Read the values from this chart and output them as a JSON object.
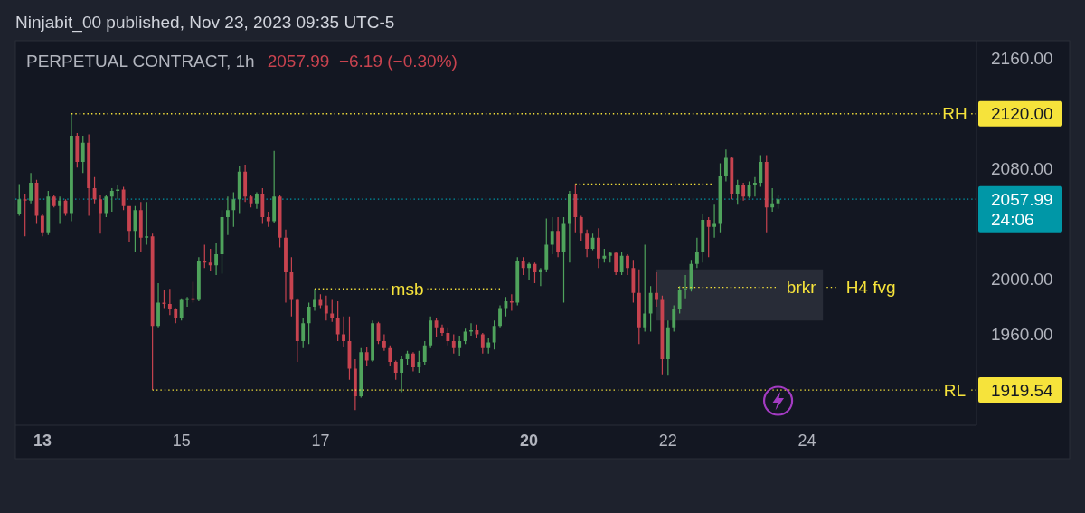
{
  "chart_data": {
    "type": "candlestick",
    "title": "PERPETUAL CONTRACT, 1h",
    "subtitle": "2057.99  −6.19 (−0.30%)",
    "annotations": [
      "Ninjabit_00 published, Nov 23, 2023 09:35 UTC-5",
      {
        "text": "RH",
        "x": "2023-11-26T03:00",
        "y": 2120
      },
      {
        "text": "RL",
        "x": "2023-11-26T03:00",
        "y": 1919.54
      },
      {
        "text": "msb",
        "x": "2023-11-18T06:00",
        "y": 1993
      },
      {
        "text": "brkr",
        "x": "2023-11-23T22:00",
        "y": 1994
      }
    ],
    "x": [
      "2023-11-12T16:00",
      "2023-11-12T18:00",
      "2023-11-12T20:00",
      "2023-11-12T22:00",
      "2023-11-13T00:00",
      "2023-11-13T02:00",
      "2023-11-13T04:00",
      "2023-11-13T06:00",
      "2023-11-13T08:00",
      "2023-11-13T10:00",
      "2023-11-13T12:00",
      "2023-11-13T14:00",
      "2023-11-13T16:00",
      "2023-11-13T18:00",
      "2023-11-13T20:00",
      "2023-11-13T22:00",
      "2023-11-14T00:00",
      "2023-11-14T02:00",
      "2023-11-14T04:00",
      "2023-11-14T06:00",
      "2023-11-14T08:00",
      "2023-11-14T10:00",
      "2023-11-14T12:00",
      "2023-11-14T14:00",
      "2023-11-14T16:00",
      "2023-11-14T18:00",
      "2023-11-14T20:00",
      "2023-11-14T22:00",
      "2023-11-15T00:00",
      "2023-11-15T02:00",
      "2023-11-15T04:00",
      "2023-11-15T06:00",
      "2023-11-15T08:00",
      "2023-11-15T10:00",
      "2023-11-15T12:00",
      "2023-11-15T14:00",
      "2023-11-15T16:00",
      "2023-11-15T18:00",
      "2023-11-15T20:00",
      "2023-11-15T22:00",
      "2023-11-16T00:00",
      "2023-11-16T02:00",
      "2023-11-16T04:00",
      "2023-11-16T06:00",
      "2023-11-16T08:00",
      "2023-11-16T10:00",
      "2023-11-16T12:00",
      "2023-11-16T14:00",
      "2023-11-16T16:00",
      "2023-11-16T18:00",
      "2023-11-16T20:00",
      "2023-11-16T22:00",
      "2023-11-17T00:00",
      "2023-11-17T02:00",
      "2023-11-17T04:00",
      "2023-11-17T06:00",
      "2023-11-17T08:00",
      "2023-11-17T10:00",
      "2023-11-17T12:00",
      "2023-11-17T14:00",
      "2023-11-17T16:00",
      "2023-11-17T18:00",
      "2023-11-17T20:00",
      "2023-11-17T22:00",
      "2023-11-18T00:00",
      "2023-11-18T02:00",
      "2023-11-18T04:00",
      "2023-11-18T06:00",
      "2023-11-18T08:00",
      "2023-11-18T10:00",
      "2023-11-18T12:00",
      "2023-11-18T14:00",
      "2023-11-18T16:00",
      "2023-11-18T18:00",
      "2023-11-18T20:00",
      "2023-11-18T22:00",
      "2023-11-19T00:00",
      "2023-11-19T02:00",
      "2023-11-19T04:00",
      "2023-11-19T06:00",
      "2023-11-19T08:00",
      "2023-11-19T10:00",
      "2023-11-19T12:00",
      "2023-11-19T14:00",
      "2023-11-19T16:00",
      "2023-11-19T18:00",
      "2023-11-19T20:00",
      "2023-11-19T22:00",
      "2023-11-20T00:00",
      "2023-11-20T02:00",
      "2023-11-20T04:00",
      "2023-11-20T06:00",
      "2023-11-20T08:00",
      "2023-11-20T10:00",
      "2023-11-20T12:00",
      "2023-11-20T14:00",
      "2023-11-20T16:00",
      "2023-11-20T18:00",
      "2023-11-20T20:00",
      "2023-11-20T22:00",
      "2023-11-21T00:00",
      "2023-11-21T02:00",
      "2023-11-21T04:00",
      "2023-11-21T06:00",
      "2023-11-21T08:00",
      "2023-11-21T10:00",
      "2023-11-21T12:00",
      "2023-11-21T14:00",
      "2023-11-21T16:00",
      "2023-11-21T18:00",
      "2023-11-21T20:00",
      "2023-11-21T22:00",
      "2023-11-22T00:00",
      "2023-11-22T02:00",
      "2023-11-22T04:00",
      "2023-11-22T06:00",
      "2023-11-22T08:00",
      "2023-11-22T10:00",
      "2023-11-22T12:00",
      "2023-11-22T14:00",
      "2023-11-22T16:00",
      "2023-11-22T18:00",
      "2023-11-22T20:00",
      "2023-11-22T22:00",
      "2023-11-23T00:00",
      "2023-11-23T02:00",
      "2023-11-23T04:00",
      "2023-11-23T06:00",
      "2023-11-23T08:00",
      "2023-11-23T10:00",
      "2023-11-23T12:00",
      "2023-11-23T14:00"
    ],
    "ohlc": [
      [
        2047,
        2069,
        2046,
        2058
      ],
      [
        2058,
        2062,
        2031,
        2057
      ],
      [
        2057,
        2077,
        2055,
        2070
      ],
      [
        2070,
        2072,
        2040,
        2046
      ],
      [
        2046,
        2047,
        2031,
        2034
      ],
      [
        2034,
        2064,
        2032,
        2060
      ],
      [
        2060,
        2061,
        2052,
        2053
      ],
      [
        2053,
        2060,
        2040,
        2057
      ],
      [
        2057,
        2058,
        2046,
        2048
      ],
      [
        2048,
        2120,
        2042,
        2104
      ],
      [
        2104,
        2106,
        2081,
        2085
      ],
      [
        2085,
        2104,
        2077,
        2099
      ],
      [
        2099,
        2105,
        2046,
        2066
      ],
      [
        2066,
        2074,
        2055,
        2058
      ],
      [
        2058,
        2061,
        2033,
        2048
      ],
      [
        2048,
        2061,
        2045,
        2060
      ],
      [
        2060,
        2066,
        2049,
        2064
      ],
      [
        2064,
        2068,
        2058,
        2065
      ],
      [
        2065,
        2067,
        2050,
        2053
      ],
      [
        2053,
        2053,
        2027,
        2035
      ],
      [
        2035,
        2053,
        2020,
        2050
      ],
      [
        2050,
        2056,
        2020,
        2030
      ],
      [
        2030,
        2056,
        2025,
        2031
      ],
      [
        2031,
        2033,
        1919.54,
        1966
      ],
      [
        1966,
        1997,
        1965,
        1983
      ],
      [
        1983,
        1992,
        1979,
        1982
      ],
      [
        1982,
        1993,
        1974,
        1978
      ],
      [
        1978,
        1979,
        1968,
        1972
      ],
      [
        1972,
        1986,
        1970,
        1985
      ],
      [
        1985,
        1987,
        1980,
        1986
      ],
      [
        1986,
        1998,
        1983,
        1985
      ],
      [
        1985,
        2016,
        1984,
        2013
      ],
      [
        2013,
        2025,
        2008,
        2012
      ],
      [
        2012,
        2022,
        2006,
        2010
      ],
      [
        2010,
        2026,
        2003,
        2018
      ],
      [
        2018,
        2050,
        2004,
        2045
      ],
      [
        2045,
        2060,
        2032,
        2050
      ],
      [
        2050,
        2063,
        2038,
        2058
      ],
      [
        2058,
        2082,
        2048,
        2078
      ],
      [
        2078,
        2083,
        2056,
        2060
      ],
      [
        2060,
        2061,
        2052,
        2055
      ],
      [
        2055,
        2063,
        2051,
        2062
      ],
      [
        2062,
        2066,
        2040,
        2045
      ],
      [
        2045,
        2049,
        2038,
        2042
      ],
      [
        2042,
        2093,
        2041,
        2060
      ],
      [
        2060,
        2061,
        2023,
        2030
      ],
      [
        2030,
        2036,
        1983,
        2005
      ],
      [
        2005,
        2016,
        1973,
        1985
      ],
      [
        1985,
        1986,
        1940,
        1955
      ],
      [
        1955,
        1972,
        1950,
        1968
      ],
      [
        1968,
        1983,
        1953,
        1980
      ],
      [
        1980,
        1993,
        1977,
        1985
      ],
      [
        1985,
        1989,
        1979,
        1981
      ],
      [
        1981,
        1988,
        1970,
        1975
      ],
      [
        1975,
        1985,
        1969,
        1972
      ],
      [
        1972,
        1984,
        1955,
        1960
      ],
      [
        1960,
        1973,
        1951,
        1955
      ],
      [
        1955,
        1973,
        1927,
        1935
      ],
      [
        1935,
        1942,
        1905,
        1915
      ],
      [
        1915,
        1950,
        1914,
        1947
      ],
      [
        1947,
        1951,
        1937,
        1941
      ],
      [
        1941,
        1970,
        1940,
        1968
      ],
      [
        1968,
        1969,
        1953,
        1955
      ],
      [
        1955,
        1960,
        1948,
        1950
      ],
      [
        1950,
        1952,
        1937,
        1940
      ],
      [
        1940,
        1941,
        1927,
        1932
      ],
      [
        1932,
        1944,
        1918,
        1942
      ],
      [
        1942,
        1948,
        1938,
        1946
      ],
      [
        1946,
        1947,
        1933,
        1936
      ],
      [
        1936,
        1948,
        1932,
        1940
      ],
      [
        1940,
        1955,
        1938,
        1952
      ],
      [
        1952,
        1973,
        1950,
        1970
      ],
      [
        1970,
        1972,
        1958,
        1965
      ],
      [
        1965,
        1967,
        1959,
        1961
      ],
      [
        1961,
        1965,
        1952,
        1955
      ],
      [
        1955,
        1960,
        1946,
        1950
      ],
      [
        1950,
        1959,
        1944,
        1955
      ],
      [
        1955,
        1964,
        1953,
        1962
      ],
      [
        1962,
        1968,
        1959,
        1963
      ],
      [
        1963,
        1967,
        1957,
        1960
      ],
      [
        1960,
        1961,
        1946,
        1950
      ],
      [
        1950,
        1957,
        1946,
        1954
      ],
      [
        1954,
        1970,
        1949,
        1966
      ],
      [
        1966,
        1981,
        1965,
        1979
      ],
      [
        1979,
        1987,
        1973,
        1984
      ],
      [
        1984,
        1989,
        1977,
        1983
      ],
      [
        1983,
        2016,
        1981,
        2013
      ],
      [
        2013,
        2016,
        2003,
        2008
      ],
      [
        2008,
        2012,
        1999,
        2011
      ],
      [
        2011,
        2012,
        1997,
        2005
      ],
      [
        2005,
        2008,
        1995,
        2007
      ],
      [
        2007,
        2044,
        2005,
        2025
      ],
      [
        2025,
        2045,
        2018,
        2035
      ],
      [
        2035,
        2045,
        2016,
        2020
      ],
      [
        2020,
        2045,
        1983,
        2040
      ],
      [
        2040,
        2064,
        2012,
        2062
      ],
      [
        2062,
        2069,
        2034,
        2045
      ],
      [
        2045,
        2046,
        2028,
        2033
      ],
      [
        2033,
        2036,
        2016,
        2022
      ],
      [
        2022,
        2033,
        2021,
        2030
      ],
      [
        2030,
        2037,
        2008,
        2015
      ],
      [
        2015,
        2022,
        2012,
        2017
      ],
      [
        2017,
        2020,
        2012,
        2019
      ],
      [
        2019,
        2020,
        2003,
        2005
      ],
      [
        2005,
        2020,
        2003,
        2017
      ],
      [
        2017,
        2018,
        2003,
        2008
      ],
      [
        2008,
        2014,
        1983,
        1990
      ],
      [
        1990,
        2007,
        1953,
        1965
      ],
      [
        1965,
        2025,
        1962,
        1975
      ],
      [
        1975,
        1995,
        1962,
        1990
      ],
      [
        1990,
        2005,
        1980,
        1985
      ],
      [
        1985,
        1988,
        1931,
        1942
      ],
      [
        1942,
        1970,
        1930,
        1965
      ],
      [
        1965,
        1981,
        1962,
        1978
      ],
      [
        1978,
        1995,
        1975,
        1992
      ],
      [
        1992,
        2003,
        1986,
        1993
      ],
      [
        1993,
        2014,
        1991,
        2011
      ],
      [
        2011,
        2030,
        2008,
        2020
      ],
      [
        2020,
        2047,
        2012,
        2043
      ],
      [
        2043,
        2045,
        2016,
        2038
      ],
      [
        2038,
        2054,
        2030,
        2040
      ],
      [
        2040,
        2084,
        2034,
        2075
      ],
      [
        2075,
        2094,
        2071,
        2088
      ],
      [
        2088,
        2089,
        2058,
        2062
      ],
      [
        2062,
        2072,
        2054,
        2068
      ],
      [
        2068,
        2070,
        2057,
        2060
      ],
      [
        2060,
        2071,
        2059,
        2068
      ],
      [
        2068,
        2074,
        2060,
        2070
      ],
      [
        2070,
        2090,
        2067,
        2085
      ],
      [
        2085,
        2090,
        2034,
        2052
      ],
      [
        2052,
        2066,
        2049,
        2055
      ],
      [
        2055,
        2061,
        2051,
        2057.99
      ]
    ],
    "xlim": [
      "2023-11-12T14:40",
      "2023-11-26T10:30"
    ],
    "ylim": [
      1894,
      2173
    ],
    "xticks": [
      {
        "value": "2023-11-13",
        "label": "13"
      },
      {
        "value": "2023-11-15",
        "label": "15"
      },
      {
        "value": "2023-11-17",
        "label": "17"
      },
      {
        "value": "2023-11-20",
        "label": "20"
      },
      {
        "value": "2023-11-22",
        "label": "22"
      },
      {
        "value": "2023-11-24",
        "label": "24"
      }
    ],
    "yticks": [
      {
        "value": 2160,
        "label": "2160.00"
      },
      {
        "value": 2120,
        "label": "2120.00"
      },
      {
        "value": 2080,
        "label": "2080.00"
      },
      {
        "value": 2000,
        "label": "2000.00"
      },
      {
        "value": 1960,
        "label": "1960.00"
      },
      {
        "value": 1919.54,
        "label": "1919.54"
      }
    ],
    "series": [
      {
        "type": "line",
        "x": [
          "2023-11-21T19:40",
          "2023-11-24T05:30"
        ],
        "values": [
          null,
          null
        ],
        "lower": [
          1970,
          1970
        ],
        "upper": [
          2007,
          2007
        ],
        "color": "#282c37"
      },
      {
        "type": "line",
        "x": [
          "2023-11-13T10:00",
          "2023-11-26T10:30"
        ],
        "values": [
          2120,
          2120
        ],
        "color": "#f6e33b",
        "line_style": "dotted"
      },
      {
        "type": "line",
        "x": [
          "2023-11-14T14:00",
          "2023-11-26T10:30"
        ],
        "values": [
          1919.54,
          1919.54
        ],
        "color": "#f6e33b",
        "line_style": "dotted"
      },
      {
        "type": "line",
        "x": [
          "2023-11-16T22:00",
          "2023-11-19T14:00"
        ],
        "values": [
          1993,
          1993
        ],
        "color": "#f6e33b",
        "line_style": "dotted"
      },
      {
        "type": "line",
        "x": [
          "2023-11-20T16:00",
          "2023-11-22T15:00"
        ],
        "values": [
          2069,
          2069
        ],
        "color": "#f6e33b",
        "line_style": "dotted"
      },
      {
        "type": "line",
        "name": "H4 fvg",
        "x": [
          "2023-11-22T03:30",
          "2023-11-24T10:00"
        ],
        "values": [
          1994,
          1994
        ],
        "color": "#f6e33b",
        "line_style": "dotted"
      }
    ],
    "ref_lines": [
      {
        "axis": "y",
        "value": 2057.99,
        "label": "2057.99\n24:06",
        "color": "#0097a7",
        "line_style": "dotted"
      }
    ]
  }
}
